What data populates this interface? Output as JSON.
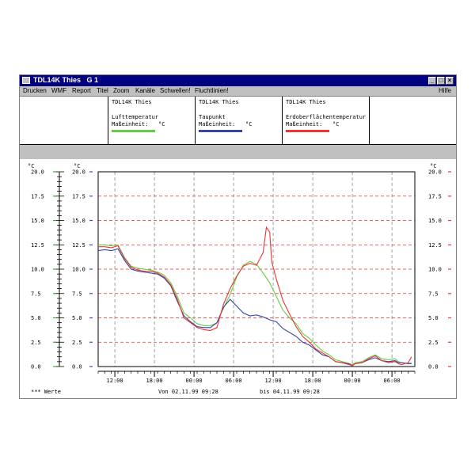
{
  "window": {
    "title": "TDL14K Thies   G 1",
    "min_glyph": "_",
    "max_glyph": "□",
    "close_glyph": "×"
  },
  "menu": {
    "items": [
      "Drucken",
      "WMF",
      "Report",
      "Titel",
      "Zoom",
      "Kanäle",
      "Schwellen!",
      "Fluchtlinien!"
    ],
    "help": "Hilfe"
  },
  "legend": [
    {
      "device": "TDL14K Thies",
      "channel": "Lufttemperatur",
      "unit_label": "Maßeinheit:",
      "unit": "°C",
      "color": "#66cc44"
    },
    {
      "device": "TDL14K Thies",
      "channel": "Taupunkt",
      "unit_label": "Maßeinheit:",
      "unit": "°C",
      "color": "#3344aa"
    },
    {
      "device": "TDL14K Thies",
      "channel": "Erdoberflächentemperatur",
      "unit_label": "Maßeinheit:",
      "unit": "°C",
      "color": "#ee3333"
    }
  ],
  "footer": {
    "left": "*** Werte",
    "from": "Von 02.11.99 09:28",
    "to": "bis 04.11.99 09:28"
  },
  "chart_data": {
    "type": "line",
    "ylabel": "°C",
    "ylim": [
      0,
      20
    ],
    "yticks": [
      "20.0",
      "17.5",
      "15.0",
      "12.5",
      "10.0",
      "7.5",
      "5.0",
      "2.5",
      "0.0"
    ],
    "xlim": [
      0,
      48
    ],
    "xtick_positions": [
      2.53,
      8.53,
      14.53,
      20.53,
      26.53,
      32.53,
      38.53,
      44.53
    ],
    "xticks": [
      "12:00",
      "18:00",
      "00:00",
      "06:00",
      "12:00",
      "18:00",
      "00:00",
      "06:00"
    ],
    "grid": true,
    "series": [
      {
        "name": "Lufttemperatur",
        "color": "#66cc44",
        "x": [
          0,
          1,
          2,
          3,
          4,
          5,
          6,
          7,
          8,
          9,
          10,
          11,
          12,
          13,
          14,
          15,
          16,
          17,
          18,
          19,
          20,
          21,
          22,
          23,
          24,
          25,
          26,
          27,
          28,
          29,
          30,
          31,
          32,
          33,
          34,
          35,
          36,
          37,
          38,
          38.5,
          39,
          40,
          41,
          42,
          43,
          44,
          45,
          45.5,
          46,
          47,
          47.5
        ],
        "y": [
          12.5,
          12.5,
          12.4,
          12.5,
          11.2,
          10.3,
          10.1,
          10.0,
          9.9,
          9.7,
          9.4,
          8.6,
          7.2,
          5.5,
          5.0,
          4.4,
          4.2,
          4.2,
          4.5,
          6.0,
          7.4,
          9.2,
          10.4,
          10.8,
          10.5,
          9.6,
          8.6,
          7.2,
          5.8,
          5.0,
          4.4,
          3.4,
          2.9,
          2.2,
          1.6,
          1.2,
          0.7,
          0.5,
          0.3,
          0.2,
          0.4,
          0.5,
          0.9,
          1.2,
          0.8,
          0.7,
          0.8,
          0.5,
          0.4,
          0.3,
          0.4
        ]
      },
      {
        "name": "Taupunkt",
        "color": "#3344aa",
        "x": [
          0,
          1,
          2,
          3,
          4,
          5,
          6,
          7,
          8,
          9,
          10,
          11,
          12,
          13,
          14,
          15,
          16,
          17,
          18,
          19,
          20,
          21,
          22,
          23,
          24,
          25,
          26,
          27,
          28,
          29,
          30,
          31,
          32,
          33,
          34,
          35,
          36,
          37,
          38,
          38.5,
          39,
          40,
          41,
          42,
          43,
          44,
          45,
          45.5,
          46,
          47,
          47.5
        ],
        "y": [
          11.9,
          12.0,
          11.9,
          12.1,
          10.9,
          10.0,
          9.8,
          9.7,
          9.6,
          9.5,
          9.1,
          8.3,
          6.7,
          5.2,
          4.6,
          4.1,
          4.0,
          4.0,
          4.5,
          6.1,
          6.9,
          6.2,
          5.5,
          5.2,
          5.3,
          5.1,
          4.8,
          4.6,
          3.9,
          3.5,
          3.1,
          2.5,
          2.2,
          1.7,
          1.2,
          1.0,
          0.5,
          0.4,
          0.3,
          0.1,
          0.3,
          0.4,
          0.7,
          0.9,
          0.6,
          0.5,
          0.6,
          0.4,
          0.4,
          0.3,
          0.3
        ]
      },
      {
        "name": "Erdoberflächentemperatur",
        "color": "#ee3333",
        "x": [
          0,
          1,
          2,
          3,
          4,
          5,
          6,
          7,
          8,
          9,
          10,
          11,
          12,
          13,
          14,
          15,
          16,
          17,
          18,
          19,
          20,
          21,
          22,
          23,
          24,
          25,
          25.5,
          26,
          26.3,
          27,
          28,
          29,
          30,
          31,
          32,
          33,
          34,
          35,
          36,
          37,
          38,
          38.5,
          39,
          40,
          41,
          42,
          43,
          44,
          45,
          45.5,
          46,
          47,
          47.5
        ],
        "y": [
          12.3,
          12.3,
          12.2,
          12.4,
          11.1,
          10.2,
          9.9,
          9.8,
          9.8,
          9.6,
          9.2,
          8.4,
          6.9,
          5.0,
          4.5,
          4.0,
          3.8,
          3.7,
          4.0,
          6.4,
          8.0,
          9.3,
          10.3,
          10.6,
          10.4,
          11.7,
          14.3,
          13.8,
          10.8,
          9.0,
          6.8,
          5.4,
          4.1,
          3.1,
          2.5,
          1.8,
          1.4,
          1.0,
          0.5,
          0.4,
          0.2,
          0.1,
          0.3,
          0.4,
          0.8,
          1.1,
          0.6,
          0.4,
          0.5,
          0.3,
          0.2,
          0.4,
          1.0
        ]
      }
    ]
  }
}
